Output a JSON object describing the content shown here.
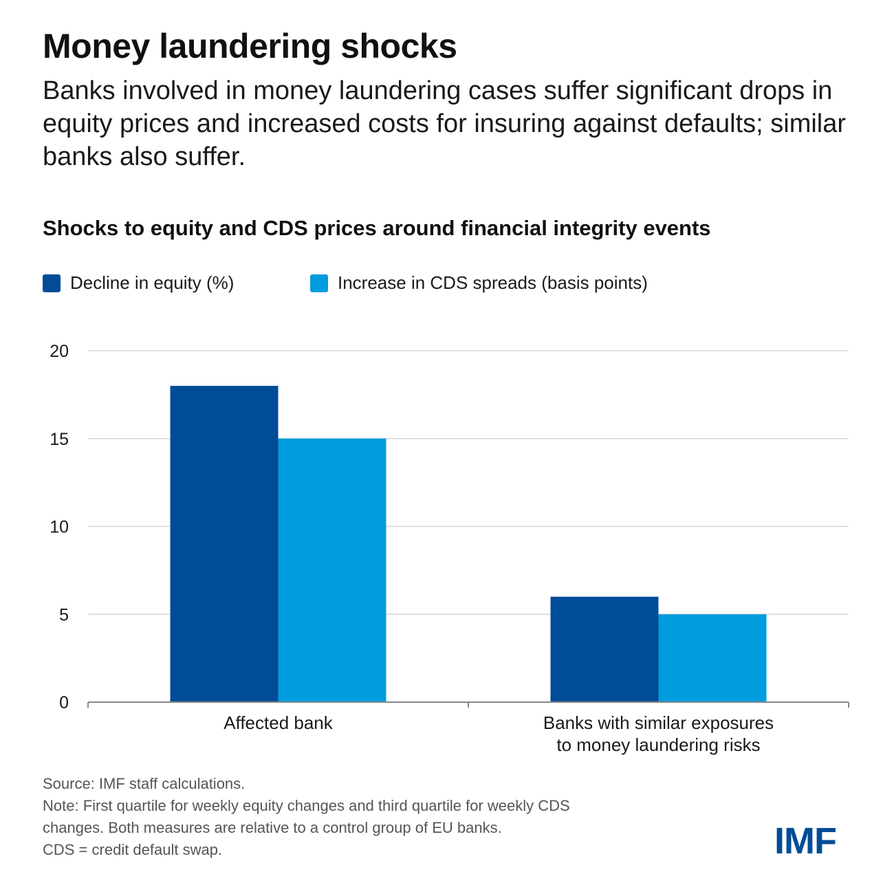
{
  "header": {
    "title": "Money laundering shocks",
    "subtitle": "Banks involved in money laundering cases suffer significant drops in equity prices and increased costs for insuring against defaults; similar banks also suffer."
  },
  "chart_data": {
    "type": "bar",
    "title": "Shocks to equity and CDS prices around financial integrity events",
    "categories": [
      [
        "Affected bank"
      ],
      [
        "Banks with similar exposures",
        "to money laundering risks"
      ]
    ],
    "series": [
      {
        "name": "Decline in equity (%)",
        "color": "#004c97",
        "values": [
          18,
          6
        ]
      },
      {
        "name": "Increase in CDS spreads (basis points)",
        "color": "#009cde",
        "values": [
          15,
          5
        ]
      }
    ],
    "yticks": [
      0,
      5,
      10,
      15,
      20
    ],
    "ylim": [
      0,
      20
    ],
    "grid": true,
    "legend_position": "top-left",
    "xlabel": "",
    "ylabel": ""
  },
  "footnotes": {
    "source": "Source: IMF staff calculations.",
    "note_line1": "Note: First quartile for weekly equity changes and third quartile for weekly CDS",
    "note_line2": "changes. Both measures are relative to a control group of EU banks.",
    "abbrev": "CDS = credit default swap."
  },
  "logo": {
    "text": "IMF"
  }
}
